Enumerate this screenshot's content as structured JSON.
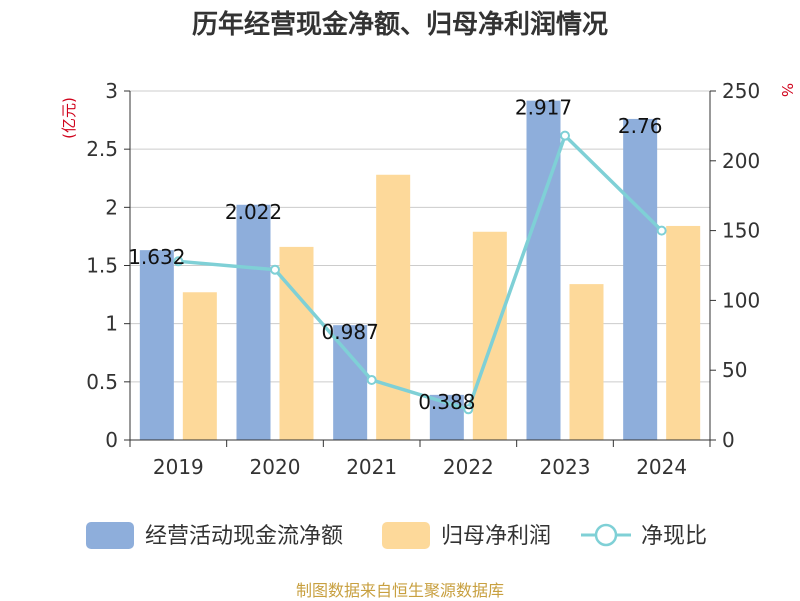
{
  "chart_data": {
    "type": "bar",
    "title": "历年经营现金净额、归母净利润情况",
    "categories": [
      "2019",
      "2020",
      "2021",
      "2022",
      "2023",
      "2024"
    ],
    "series": [
      {
        "name": "经营活动现金流净额",
        "type": "bar",
        "axis": "left",
        "color": "#8eaedb",
        "values": [
          1.632,
          2.022,
          0.987,
          0.388,
          2.917,
          2.76
        ],
        "labels": [
          "1.632",
          "2.022",
          "0.987",
          "0.388",
          "2.917",
          "2.76"
        ]
      },
      {
        "name": "归母净利润",
        "type": "bar",
        "axis": "left",
        "color": "#fdd99a",
        "values": [
          1.27,
          1.66,
          2.28,
          1.79,
          1.34,
          1.84
        ]
      },
      {
        "name": "净现比",
        "type": "line",
        "axis": "right",
        "color": "#7fd0d6",
        "values": [
          128,
          122,
          43,
          22,
          218,
          150
        ]
      }
    ],
    "y_left": {
      "unit": "(亿元)",
      "ylim": [
        0,
        3
      ],
      "ticks": [
        0,
        0.5,
        1,
        1.5,
        2,
        2.5,
        3
      ],
      "tick_labels": [
        "0",
        "0.5",
        "1",
        "1.5",
        "2",
        "2.5",
        "3"
      ]
    },
    "y_right": {
      "unit": "%",
      "ylim": [
        0,
        250
      ],
      "ticks": [
        0,
        50,
        100,
        150,
        200,
        250
      ],
      "tick_labels": [
        "0",
        "50",
        "100",
        "150",
        "200",
        "250"
      ]
    },
    "grid": true,
    "legend_position": "bottom"
  },
  "footer": {
    "source": "制图数据来自恒生聚源数据库"
  }
}
